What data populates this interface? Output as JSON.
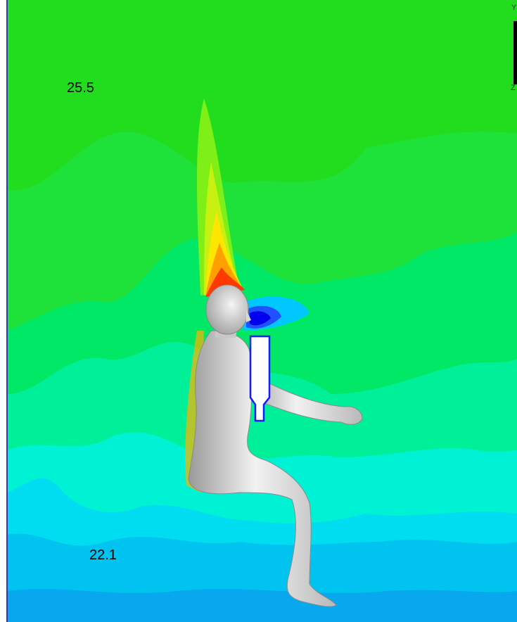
{
  "labels": {
    "top": "25.5",
    "bottom": "22.1"
  },
  "triad": {
    "y": "Y",
    "z": "Z"
  }
}
